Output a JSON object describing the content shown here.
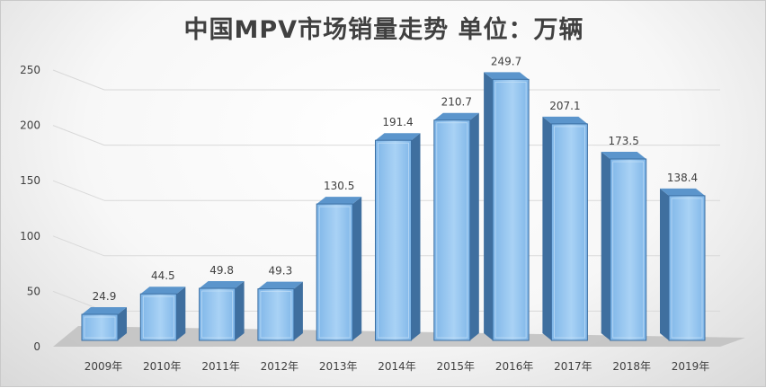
{
  "chart_data": {
    "type": "bar",
    "title": "中国MPV市场销量走势 单位：万辆",
    "categories": [
      "2009年",
      "2010年",
      "2011年",
      "2012年",
      "2013年",
      "2014年",
      "2015年",
      "2016年",
      "2017年",
      "2018年",
      "2019年"
    ],
    "values": [
      24.9,
      44.5,
      49.8,
      49.3,
      130.5,
      191.4,
      210.7,
      249.7,
      207.1,
      173.5,
      138.4
    ],
    "value_labels": [
      "24.9",
      "44.5",
      "49.8",
      "49.3",
      "130.5",
      "191.4",
      "210.7",
      "249.7",
      "207.1",
      "173.5",
      "138.4"
    ],
    "yticks": [
      "0",
      "50",
      "100",
      "150",
      "200",
      "250"
    ],
    "ylim": [
      0,
      250
    ],
    "xlabel": "",
    "ylabel": "",
    "grid": true,
    "legend": "none",
    "colors": {
      "bar_front": "#7fb6e8",
      "bar_light": "#a9d2f5",
      "bar_side": "#3f6f9f",
      "bar_top": "#5b95cc",
      "floor": "#bfbfbf",
      "grid": "#d9d9d9",
      "text": "#404040"
    }
  }
}
